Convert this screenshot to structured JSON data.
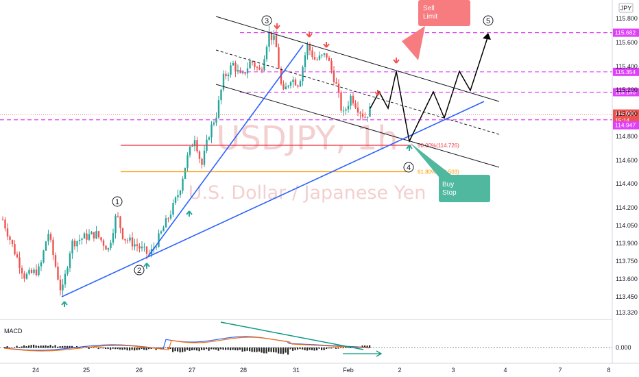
{
  "symbol_watermark": "USDJPY, 1h",
  "description_watermark": "U.S. Dollar / Japanese Yen",
  "currency_badge": "JPY",
  "macd_label": "MACD",
  "colors": {
    "up": "#26a69a",
    "down": "#ef5350",
    "channel": "#131722",
    "trendline": "#2962ff",
    "magenta": "#e040fb",
    "fib50": "#f23645",
    "fib618": "#ff9800",
    "macd_line": "#2962ff",
    "signal_line": "#ff6d00",
    "divergence": "#089981"
  },
  "chart_data": {
    "type": "candlestick",
    "title": "USDJPY, 1h",
    "subtitle": "U.S. Dollar / Japanese Yen",
    "ylim": [
      113.3,
      115.92
    ],
    "y_ticks": [
      "115.800",
      "115.600",
      "115.400",
      "115.200",
      "115.000",
      "114.800",
      "114.600",
      "114.400",
      "114.200",
      "114.050",
      "113.900",
      "113.750",
      "113.600",
      "113.450",
      "113.320"
    ],
    "x_ticks": [
      "24",
      "25",
      "26",
      "27",
      "28",
      "31",
      "Feb",
      "2",
      "3",
      "4",
      "7",
      "8"
    ],
    "price_tags": [
      {
        "label": "115.682",
        "value": 115.682
      },
      {
        "label": "115.354",
        "value": 115.354
      },
      {
        "label": "115.180",
        "value": 115.18
      },
      {
        "label": "114.947",
        "value": 114.947
      }
    ],
    "current_price": {
      "label": "114.990",
      "countdown": "15:14",
      "value": 114.99
    },
    "fibonacci": [
      {
        "label": "50.00%(114.726)",
        "value": 114.726
      },
      {
        "label": "61.80%(114.503)",
        "value": 114.503
      }
    ],
    "wave_labels": [
      "1",
      "2",
      "3",
      "4",
      "5"
    ],
    "annotations": [
      "Sell Limit",
      "Buy Stop"
    ],
    "macd_ticks": [
      "0.000"
    ],
    "series": [
      {
        "name": "USDJPY",
        "ohlc_keypoints": [
          {
            "x": "23 Jan",
            "close": 114.1
          },
          {
            "x": "24 Jan",
            "close": 113.47
          },
          {
            "x": "25 Jan",
            "close": 113.95
          },
          {
            "x": "26 Jan",
            "close": 113.8
          },
          {
            "x": "26 Jan",
            "close": 114.05
          },
          {
            "x": "27 Jan",
            "close": 114.6
          },
          {
            "x": "27 Jan",
            "close": 114.95
          },
          {
            "x": "28 Jan",
            "close": 115.35
          },
          {
            "x": "28 Jan",
            "close": 115.68
          },
          {
            "x": "31 Jan",
            "close": 115.2
          },
          {
            "x": "31 Jan",
            "close": 115.55
          },
          {
            "x": "1 Feb",
            "close": 115.0
          },
          {
            "x": "1 Feb",
            "close": 114.95
          }
        ]
      }
    ]
  }
}
